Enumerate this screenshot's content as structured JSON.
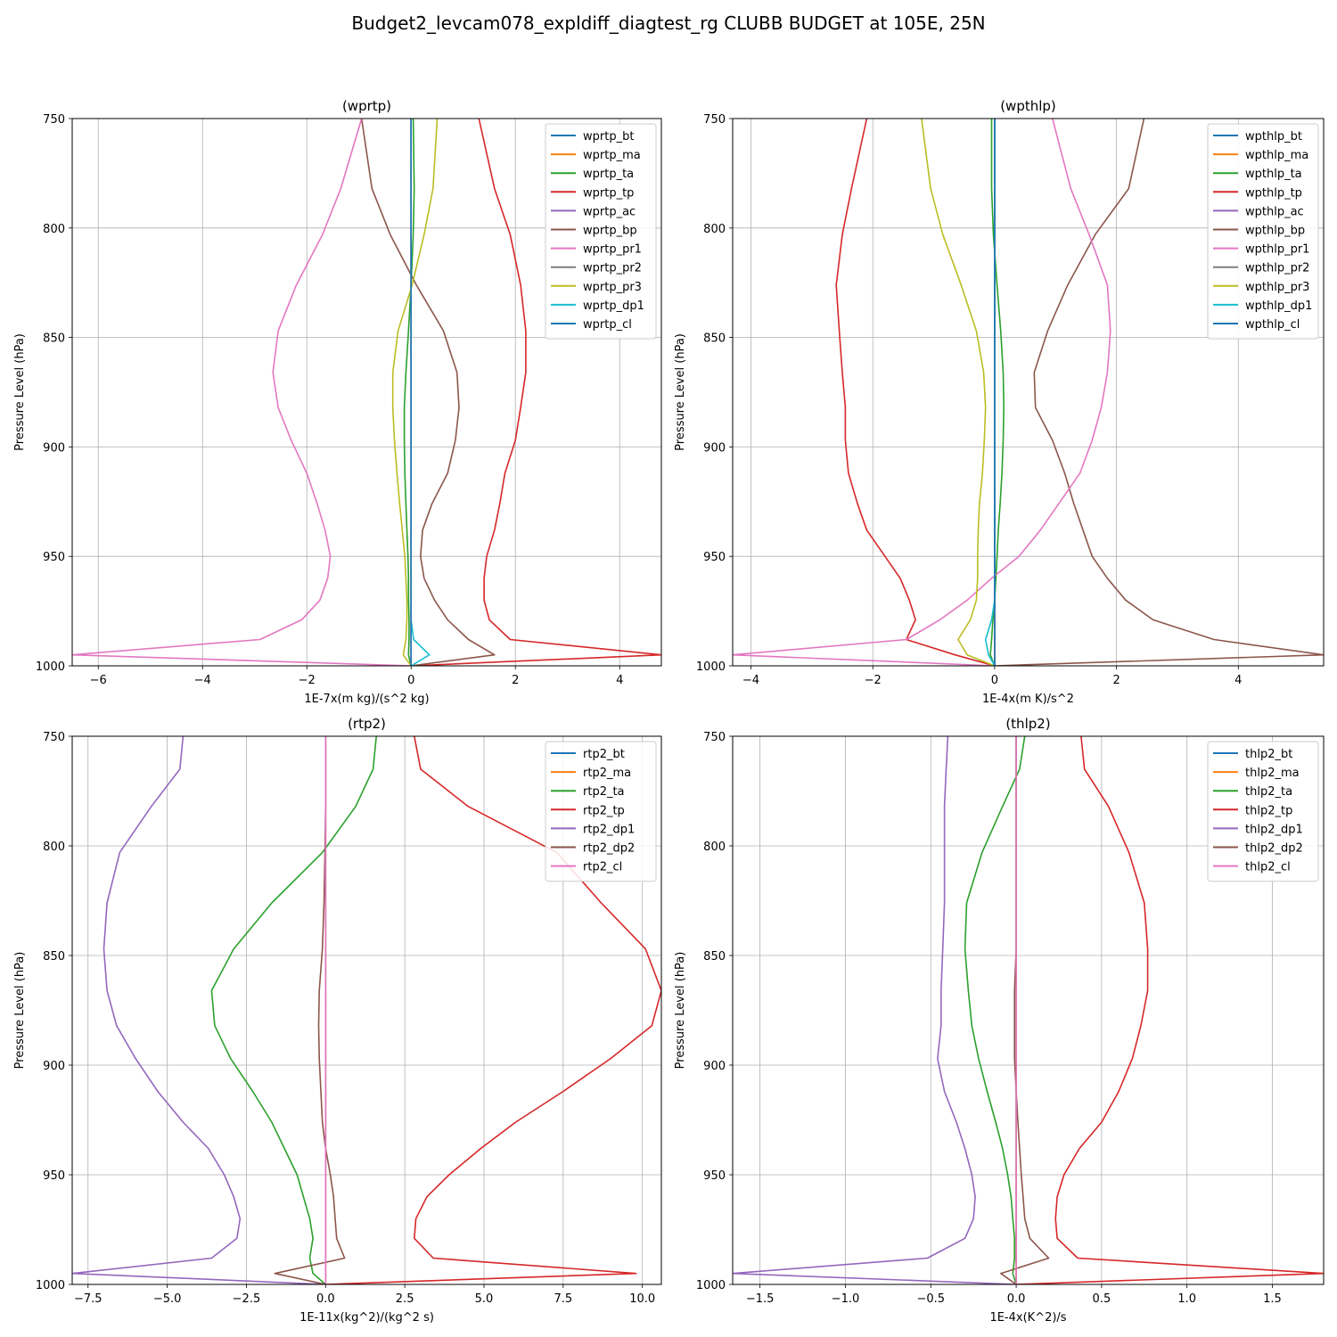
{
  "figure": {
    "title": "Budget2_levcam078_expldiff_diagtest_rg CLUBB BUDGET at 105E, 25N"
  },
  "chart_data": [
    {
      "type": "line",
      "title": "(wprtp)",
      "xlabel": "1E-7x(m kg)/(s^2 kg)",
      "ylabel": "Pressure Level (hPa)",
      "xlim": [
        -6.5,
        4.8
      ],
      "ylim": [
        1000,
        750
      ],
      "xticks": [
        -6,
        -4,
        -2,
        0,
        2,
        4
      ],
      "xtick_labels": [
        "−6",
        "−4",
        "−2",
        "0",
        "2",
        "4"
      ],
      "yticks": [
        750,
        800,
        850,
        900,
        950,
        1000
      ],
      "ytick_labels": [
        "750",
        "800",
        "850",
        "900",
        "950",
        "1000"
      ],
      "grid": true,
      "legend": "top-right",
      "y": [
        1000,
        995,
        988,
        979,
        970,
        960,
        950,
        938,
        926,
        912,
        897,
        882,
        866,
        847,
        826,
        803,
        782,
        750
      ],
      "series": [
        {
          "name": "wprtp_bt",
          "color": "#1f77b4",
          "values": [
            0,
            0,
            0,
            0,
            0,
            0,
            0,
            0,
            0,
            0,
            0,
            0,
            0,
            0,
            0,
            0,
            0,
            0
          ]
        },
        {
          "name": "wprtp_ma",
          "color": "#ff7f0e",
          "values": [
            0,
            0,
            0,
            0,
            0,
            0,
            0,
            0,
            0,
            0,
            0,
            0,
            0,
            0,
            0,
            0,
            0,
            0
          ]
        },
        {
          "name": "wprtp_ta",
          "color": "#2ca02c",
          "values": [
            0,
            -0.05,
            -0.04,
            -0.04,
            -0.05,
            -0.05,
            -0.06,
            -0.08,
            -0.1,
            -0.12,
            -0.13,
            -0.13,
            -0.1,
            -0.05,
            0,
            0.04,
            0.06,
            0.04
          ]
        },
        {
          "name": "wprtp_tp",
          "color": "#d62728",
          "values": [
            0,
            4.8,
            1.9,
            1.5,
            1.4,
            1.4,
            1.45,
            1.6,
            1.7,
            1.8,
            2.0,
            2.1,
            2.2,
            2.2,
            2.1,
            1.9,
            1.6,
            1.3
          ]
        },
        {
          "name": "wprtp_ac",
          "color": "#9467bd",
          "values": [
            0,
            0,
            0,
            0,
            0,
            0,
            0,
            0,
            0,
            0,
            0,
            0,
            0,
            0,
            0,
            0,
            0,
            0
          ]
        },
        {
          "name": "wprtp_bp",
          "color": "#8c564b",
          "values": [
            0,
            1.6,
            1.1,
            0.7,
            0.45,
            0.25,
            0.18,
            0.22,
            0.4,
            0.7,
            0.85,
            0.92,
            0.88,
            0.62,
            0.1,
            -0.4,
            -0.75,
            -0.95
          ]
        },
        {
          "name": "wprtp_pr1",
          "color": "#e377c2",
          "values": [
            0,
            -6.5,
            -2.9,
            -2.1,
            -1.75,
            -1.6,
            -1.55,
            -1.65,
            -1.8,
            -2.0,
            -2.3,
            -2.55,
            -2.65,
            -2.55,
            -2.2,
            -1.7,
            -1.35,
            -0.95
          ]
        },
        {
          "name": "wprtp_pr2",
          "color": "#7f7f7f",
          "values": [
            0,
            0,
            0,
            0,
            0,
            0,
            0,
            0,
            0,
            0,
            0,
            0,
            0,
            0,
            0,
            0,
            0,
            0
          ]
        },
        {
          "name": "wprtp_pr3",
          "color": "#bcbd22",
          "values": [
            0,
            -0.15,
            -0.1,
            -0.08,
            -0.08,
            -0.1,
            -0.12,
            -0.17,
            -0.22,
            -0.27,
            -0.32,
            -0.35,
            -0.35,
            -0.25,
            0.02,
            0.25,
            0.42,
            0.5
          ]
        },
        {
          "name": "wprtp_dp1",
          "color": "#17becf",
          "values": [
            0,
            0.35,
            0.05,
            0,
            0,
            0,
            0,
            0,
            0,
            0,
            0,
            0,
            0,
            0,
            0,
            0,
            0,
            0
          ]
        },
        {
          "name": "wprtp_cl",
          "color": "#1f77b4",
          "values": [
            0,
            0,
            0,
            0,
            0,
            0,
            0,
            0,
            0,
            0,
            0,
            0,
            0,
            0,
            0,
            0,
            0,
            0
          ]
        }
      ]
    },
    {
      "type": "line",
      "title": "(wpthlp)",
      "xlabel": "1E-4x(m K)/s^2",
      "ylabel": "Pressure Level (hPa)",
      "xlim": [
        -4.3,
        5.4
      ],
      "ylim": [
        1000,
        750
      ],
      "xticks": [
        -4,
        -2,
        0,
        2,
        4
      ],
      "xtick_labels": [
        "−4",
        "−2",
        "0",
        "2",
        "4"
      ],
      "yticks": [
        750,
        800,
        850,
        900,
        950,
        1000
      ],
      "ytick_labels": [
        "750",
        "800",
        "850",
        "900",
        "950",
        "1000"
      ],
      "grid": true,
      "legend": "top-right",
      "y": [
        1000,
        995,
        988,
        979,
        970,
        960,
        950,
        938,
        926,
        912,
        897,
        882,
        866,
        847,
        826,
        803,
        782,
        750
      ],
      "series": [
        {
          "name": "wpthlp_bt",
          "color": "#1f77b4",
          "values": [
            0,
            0,
            0,
            0,
            0,
            0,
            0,
            0,
            0,
            0,
            0,
            0,
            0,
            0,
            0,
            0,
            0,
            0
          ]
        },
        {
          "name": "wpthlp_ma",
          "color": "#ff7f0e",
          "values": [
            0,
            0,
            0,
            0,
            0,
            0,
            0,
            0,
            0,
            0,
            0,
            0,
            0,
            0,
            0,
            0,
            0,
            0
          ]
        },
        {
          "name": "wpthlp_ta",
          "color": "#2ca02c",
          "values": [
            0,
            -0.07,
            -0.05,
            -0.03,
            0,
            0.02,
            0.04,
            0.06,
            0.09,
            0.12,
            0.14,
            0.15,
            0.14,
            0.1,
            0.04,
            -0.02,
            -0.05,
            -0.05
          ]
        },
        {
          "name": "wpthlp_tp",
          "color": "#d62728",
          "values": [
            0,
            -0.65,
            -1.45,
            -1.3,
            -1.4,
            -1.55,
            -1.8,
            -2.1,
            -2.25,
            -2.4,
            -2.45,
            -2.45,
            -2.5,
            -2.55,
            -2.6,
            -2.5,
            -2.35,
            -2.1
          ]
        },
        {
          "name": "wpthlp_ac",
          "color": "#9467bd",
          "values": [
            0,
            0,
            0,
            0,
            0,
            0,
            0,
            0,
            0,
            0,
            0,
            0,
            0,
            0,
            0,
            0,
            0,
            0
          ]
        },
        {
          "name": "wpthlp_bp",
          "color": "#8c564b",
          "values": [
            0,
            5.4,
            3.6,
            2.6,
            2.15,
            1.85,
            1.6,
            1.45,
            1.3,
            1.15,
            0.95,
            0.67,
            0.65,
            0.87,
            1.2,
            1.65,
            2.2,
            2.45
          ]
        },
        {
          "name": "wpthlp_pr1",
          "color": "#e377c2",
          "values": [
            0,
            -4.3,
            -1.45,
            -0.9,
            -0.45,
            -0.05,
            0.4,
            0.75,
            1.05,
            1.4,
            1.6,
            1.75,
            1.85,
            1.9,
            1.85,
            1.55,
            1.25,
            0.95
          ]
        },
        {
          "name": "wpthlp_pr2",
          "color": "#7f7f7f",
          "values": [
            0,
            0,
            0,
            0,
            0,
            0,
            0,
            0,
            0,
            0,
            0,
            0,
            0,
            0,
            0,
            0,
            0,
            0
          ]
        },
        {
          "name": "wpthlp_pr3",
          "color": "#bcbd22",
          "values": [
            0,
            -0.45,
            -0.6,
            -0.4,
            -0.3,
            -0.28,
            -0.28,
            -0.27,
            -0.25,
            -0.2,
            -0.17,
            -0.15,
            -0.18,
            -0.3,
            -0.55,
            -0.85,
            -1.05,
            -1.2
          ]
        },
        {
          "name": "wpthlp_dp1",
          "color": "#17becf",
          "values": [
            0,
            -0.1,
            -0.15,
            -0.05,
            0,
            0,
            0,
            0,
            0,
            0,
            0,
            0,
            0,
            0,
            0,
            0,
            0,
            0
          ]
        },
        {
          "name": "wpthlp_cl",
          "color": "#1f77b4",
          "values": [
            0,
            0,
            0,
            0,
            0,
            0,
            0,
            0,
            0,
            0,
            0,
            0,
            0,
            0,
            0,
            0,
            0,
            0
          ]
        }
      ]
    },
    {
      "type": "line",
      "title": "(rtp2)",
      "xlabel": "1E-11x(kg^2)/(kg^2 s)",
      "ylabel": "Pressure Level (hPa)",
      "xlim": [
        -8.0,
        10.6
      ],
      "ylim": [
        1000,
        750
      ],
      "xticks": [
        -7.5,
        -5.0,
        -2.5,
        0.0,
        2.5,
        5.0,
        7.5,
        10.0
      ],
      "xtick_labels": [
        "−7.5",
        "−5.0",
        "−2.5",
        "0.0",
        "2.5",
        "5.0",
        "7.5",
        "10.0"
      ],
      "yticks": [
        750,
        800,
        850,
        900,
        950,
        1000
      ],
      "ytick_labels": [
        "750",
        "800",
        "850",
        "900",
        "950",
        "1000"
      ],
      "grid": true,
      "legend": "top-right",
      "y": [
        1000,
        995,
        988,
        979,
        970,
        960,
        950,
        938,
        926,
        912,
        897,
        882,
        866,
        847,
        826,
        803,
        782,
        765,
        750
      ],
      "series": [
        {
          "name": "rtp2_bt",
          "color": "#1f77b4",
          "values": [
            0,
            0,
            0,
            0,
            0,
            0,
            0,
            0,
            0,
            0,
            0,
            0,
            0,
            0,
            0,
            0,
            0,
            0,
            0
          ]
        },
        {
          "name": "rtp2_ma",
          "color": "#ff7f0e",
          "values": [
            0,
            0,
            0,
            0,
            0,
            0,
            0,
            0,
            0,
            0,
            0,
            0,
            0,
            0,
            0,
            0,
            0,
            0,
            0
          ]
        },
        {
          "name": "rtp2_ta",
          "color": "#2ca02c",
          "values": [
            0,
            -0.4,
            -0.5,
            -0.4,
            -0.5,
            -0.7,
            -0.9,
            -1.3,
            -1.7,
            -2.3,
            -3.0,
            -3.5,
            -3.6,
            -2.9,
            -1.7,
            -0.1,
            0.95,
            1.5,
            1.6
          ]
        },
        {
          "name": "rtp2_tp",
          "color": "#d62728",
          "values": [
            0,
            9.8,
            3.4,
            2.8,
            2.85,
            3.2,
            3.9,
            4.9,
            6.0,
            7.5,
            9.0,
            10.3,
            10.6,
            10.1,
            8.7,
            7.3,
            4.5,
            3.0,
            2.8
          ]
        },
        {
          "name": "rtp2_dp1",
          "color": "#9467bd",
          "values": [
            0,
            -8.0,
            -3.6,
            -2.8,
            -2.7,
            -2.9,
            -3.2,
            -3.7,
            -4.5,
            -5.3,
            -6.0,
            -6.6,
            -6.9,
            -7.0,
            -6.9,
            -6.5,
            -5.5,
            -4.6,
            -4.5
          ]
        },
        {
          "name": "rtp2_dp2",
          "color": "#8c564b",
          "values": [
            0,
            -1.6,
            0.6,
            0.35,
            0.3,
            0.25,
            0.15,
            0,
            -0.1,
            -0.15,
            -0.2,
            -0.22,
            -0.2,
            -0.1,
            -0.05,
            -0.02,
            0,
            0,
            0
          ]
        },
        {
          "name": "rtp2_cl",
          "color": "#e377c2",
          "values": [
            0,
            0,
            0,
            0,
            0,
            0,
            0,
            0,
            0,
            0,
            0,
            0,
            0,
            0,
            0,
            0,
            0,
            0,
            0
          ]
        }
      ]
    },
    {
      "type": "line",
      "title": "(thlp2)",
      "xlabel": "1E-4x(K^2)/s",
      "ylabel": "Pressure Level (hPa)",
      "xlim": [
        -1.66,
        1.8
      ],
      "ylim": [
        1000,
        750
      ],
      "xticks": [
        -1.5,
        -1.0,
        -0.5,
        0.0,
        0.5,
        1.0,
        1.5
      ],
      "xtick_labels": [
        "−1.5",
        "−1.0",
        "−0.5",
        "0.0",
        "0.5",
        "1.0",
        "1.5"
      ],
      "yticks": [
        750,
        800,
        850,
        900,
        950,
        1000
      ],
      "ytick_labels": [
        "750",
        "800",
        "850",
        "900",
        "950",
        "1000"
      ],
      "grid": true,
      "legend": "top-right",
      "y": [
        1000,
        995,
        988,
        979,
        970,
        960,
        950,
        938,
        926,
        912,
        897,
        882,
        866,
        847,
        826,
        803,
        782,
        765,
        750
      ],
      "series": [
        {
          "name": "thlp2_bt",
          "color": "#1f77b4",
          "values": [
            0,
            0,
            0,
            0,
            0,
            0,
            0,
            0,
            0,
            0,
            0,
            0,
            0,
            0,
            0,
            0,
            0,
            0,
            0
          ]
        },
        {
          "name": "thlp2_ma",
          "color": "#ff7f0e",
          "values": [
            0,
            0,
            0,
            0,
            0,
            0,
            0,
            0,
            0,
            0,
            0,
            0,
            0,
            0,
            0,
            0,
            0,
            0,
            0
          ]
        },
        {
          "name": "thlp2_ta",
          "color": "#2ca02c",
          "values": [
            0,
            -0.02,
            -0.01,
            -0.01,
            -0.02,
            -0.03,
            -0.05,
            -0.08,
            -0.12,
            -0.17,
            -0.22,
            -0.26,
            -0.28,
            -0.3,
            -0.29,
            -0.2,
            -0.08,
            0.02,
            0.05
          ]
        },
        {
          "name": "thlp2_tp",
          "color": "#d62728",
          "values": [
            0,
            1.8,
            0.36,
            0.24,
            0.23,
            0.24,
            0.28,
            0.37,
            0.5,
            0.6,
            0.68,
            0.73,
            0.77,
            0.77,
            0.75,
            0.66,
            0.54,
            0.4,
            0.38
          ]
        },
        {
          "name": "thlp2_dp1",
          "color": "#9467bd",
          "values": [
            0,
            -1.66,
            -0.52,
            -0.3,
            -0.25,
            -0.24,
            -0.26,
            -0.3,
            -0.35,
            -0.42,
            -0.46,
            -0.44,
            -0.44,
            -0.43,
            -0.42,
            -0.42,
            -0.42,
            -0.41,
            -0.4
          ]
        },
        {
          "name": "thlp2_dp2",
          "color": "#8c564b",
          "values": [
            0,
            -0.09,
            0.19,
            0.08,
            0.05,
            0.04,
            0.03,
            0.02,
            0.01,
            0,
            -0.01,
            -0.01,
            -0.01,
            0,
            0,
            0,
            0,
            0,
            0
          ]
        },
        {
          "name": "thlp2_cl",
          "color": "#e377c2",
          "values": [
            0,
            0,
            0,
            0,
            0,
            0,
            0,
            0,
            0,
            0,
            0,
            0,
            0,
            0,
            0,
            0,
            0,
            0,
            0
          ]
        }
      ]
    }
  ]
}
